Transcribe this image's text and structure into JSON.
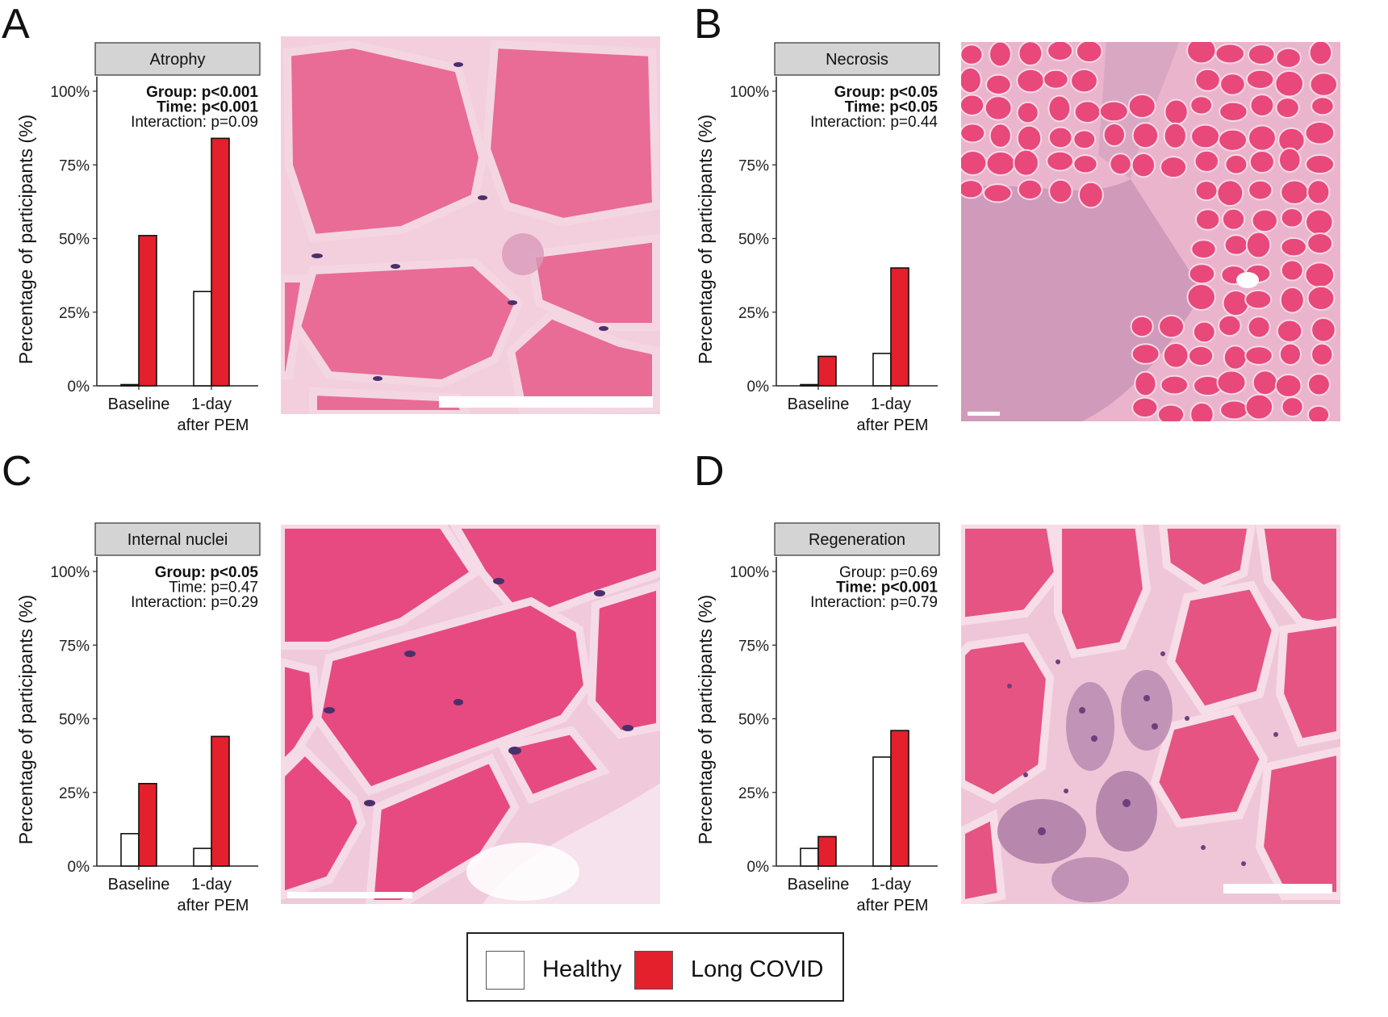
{
  "panels": [
    {
      "letter": "A"
    },
    {
      "letter": "B"
    },
    {
      "letter": "C"
    },
    {
      "letter": "D"
    }
  ],
  "chart_data": [
    {
      "type": "bar",
      "facet_title": "Atrophy",
      "ylabel": "Percentage of participants (%)",
      "ylim": [
        0,
        100
      ],
      "yticks": [
        "0%",
        "25%",
        "50%",
        "75%",
        "100%"
      ],
      "categories": [
        [
          "Baseline"
        ],
        [
          "1-day",
          "after PEM"
        ]
      ],
      "series": [
        {
          "name": "Healthy",
          "color": "#ffffff",
          "values": [
            0,
            32
          ]
        },
        {
          "name": "Long COVID",
          "color": "#e3202c",
          "values": [
            51,
            84
          ]
        }
      ],
      "stats": [
        {
          "text": "Group: p<0.001",
          "bold": true
        },
        {
          "text": "Time: p<0.001",
          "bold": true
        },
        {
          "text": "Interaction: p=0.09",
          "bold": false
        }
      ]
    },
    {
      "type": "bar",
      "facet_title": "Necrosis",
      "ylabel": "Percentage of participants (%)",
      "ylim": [
        0,
        100
      ],
      "yticks": [
        "0%",
        "25%",
        "50%",
        "75%",
        "100%"
      ],
      "categories": [
        [
          "Baseline"
        ],
        [
          "1-day",
          "after PEM"
        ]
      ],
      "series": [
        {
          "name": "Healthy",
          "color": "#ffffff",
          "values": [
            0,
            11
          ]
        },
        {
          "name": "Long COVID",
          "color": "#e3202c",
          "values": [
            10,
            40
          ]
        }
      ],
      "stats": [
        {
          "text": "Group: p<0.05",
          "bold": true
        },
        {
          "text": "Time: p<0.05",
          "bold": true
        },
        {
          "text": "Interaction: p=0.44",
          "bold": false
        }
      ]
    },
    {
      "type": "bar",
      "facet_title": "Internal nuclei",
      "ylabel": "Percentage of participants (%)",
      "ylim": [
        0,
        100
      ],
      "yticks": [
        "0%",
        "25%",
        "50%",
        "75%",
        "100%"
      ],
      "categories": [
        [
          "Baseline"
        ],
        [
          "1-day",
          "after PEM"
        ]
      ],
      "series": [
        {
          "name": "Healthy",
          "color": "#ffffff",
          "values": [
            11,
            6
          ]
        },
        {
          "name": "Long COVID",
          "color": "#e3202c",
          "values": [
            28,
            44
          ]
        }
      ],
      "stats": [
        {
          "text": "Group: p<0.05",
          "bold": true
        },
        {
          "text": "Time: p=0.47",
          "bold": false
        },
        {
          "text": "Interaction: p=0.29",
          "bold": false
        }
      ]
    },
    {
      "type": "bar",
      "facet_title": "Regeneration",
      "ylabel": "Percentage of participants (%)",
      "ylim": [
        0,
        100
      ],
      "yticks": [
        "0%",
        "25%",
        "50%",
        "75%",
        "100%"
      ],
      "categories": [
        [
          "Baseline"
        ],
        [
          "1-day",
          "after PEM"
        ]
      ],
      "series": [
        {
          "name": "Healthy",
          "color": "#ffffff",
          "values": [
            6,
            37
          ]
        },
        {
          "name": "Long COVID",
          "color": "#e3202c",
          "values": [
            10,
            46
          ]
        }
      ],
      "stats": [
        {
          "text": "Group: p=0.69",
          "bold": false
        },
        {
          "text": "Time: p<0.001",
          "bold": true
        },
        {
          "text": "Interaction: p=0.79",
          "bold": false
        }
      ]
    }
  ],
  "legend": {
    "items": [
      {
        "label": "Healthy",
        "color": "#ffffff"
      },
      {
        "label": "Long COVID",
        "color": "#e3202c"
      }
    ]
  },
  "micrographs": [
    {
      "name": "atrophy-micrograph",
      "bg": "#e7759a",
      "fiber": "#e86c95",
      "membrane": "#f4d6e3"
    },
    {
      "name": "necrosis-micrograph",
      "bg": "#f2b9cf",
      "fiber": "#e8487a",
      "membrane": "#f6d9e6"
    },
    {
      "name": "internal-nuclei-micrograph",
      "bg": "#f0c6d8",
      "fiber": "#e64a80",
      "membrane": "#f5dbe7"
    },
    {
      "name": "regeneration-micrograph",
      "bg": "#f1c8da",
      "fiber": "#e55483",
      "membrane": "#f6dde8"
    }
  ]
}
